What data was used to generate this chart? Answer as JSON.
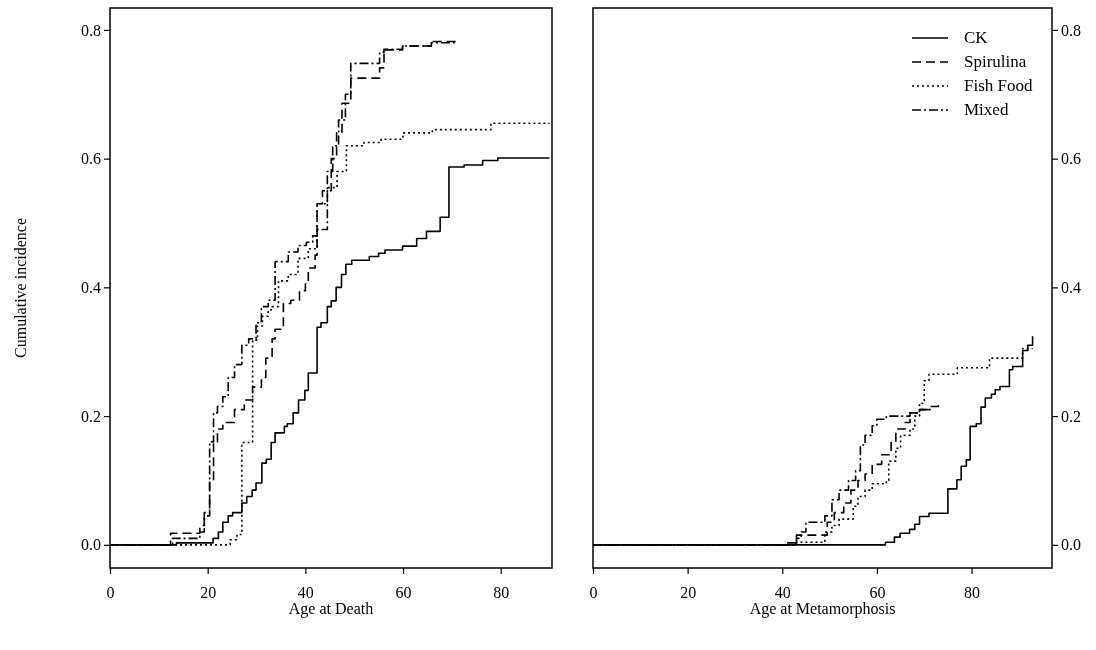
{
  "chart_data": [
    {
      "type": "step",
      "xlabel": "Age at Death",
      "ylabel": "Cumulative incidence",
      "xlim": [
        0,
        90.5
      ],
      "xticks": [
        0,
        20,
        40,
        60,
        80
      ],
      "ylim": [
        -0.036,
        0.834
      ],
      "yticks": [
        {
          "value": 0,
          "label": "0.0"
        },
        {
          "value": 0.2,
          "label": "0.2"
        },
        {
          "value": 0.4,
          "label": "0.4"
        },
        {
          "value": 0.6,
          "label": "0.6"
        },
        {
          "value": 0.8,
          "label": "0.8"
        }
      ],
      "grid": false,
      "legend": false,
      "series": [
        {
          "color": "#000000",
          "line_style": "solid",
          "x": [
            0,
            13.6,
            21.1,
            22.2,
            23.1,
            24.2,
            25.1,
            27,
            28,
            29.1,
            29.9,
            31.1,
            32,
            33,
            33.8,
            35.7,
            36.3,
            37.5,
            38.6,
            39.9,
            40.6,
            42.4,
            43.2,
            44.5,
            45.3,
            46.3,
            47.4,
            48.3,
            49.5,
            53.1,
            55,
            56.3,
            59.9,
            62.8,
            64.8,
            67.6,
            69.4,
            72.5,
            76.3,
            79.4,
            90
          ],
          "values": [
            0,
            0.003,
            0.01,
            0.02,
            0.035,
            0.045,
            0.05,
            0.065,
            0.075,
            0.085,
            0.096,
            0.127,
            0.133,
            0.159,
            0.174,
            0.184,
            0.188,
            0.205,
            0.225,
            0.24,
            0.267,
            0.338,
            0.345,
            0.37,
            0.379,
            0.4,
            0.42,
            0.436,
            0.442,
            0.448,
            0.453,
            0.458,
            0.464,
            0.476,
            0.487,
            0.509,
            0.587,
            0.59,
            0.597,
            0.601,
            0.601
          ]
        },
        {
          "color": "#000000",
          "line_style": "dashed",
          "x": [
            0,
            12.4,
            18.4,
            19.3,
            20.4,
            21.2,
            22,
            23.1,
            25.5,
            27.5,
            29.2,
            31,
            31.9,
            33.2,
            33.8,
            35.5,
            37,
            38.8,
            40,
            40.6,
            42,
            42.4,
            43.5,
            45.3,
            46.4,
            47.5,
            49.3,
            55.2,
            56.1,
            59.9,
            65.8,
            70.8
          ],
          "values": [
            0,
            0.018,
            0.03,
            0.045,
            0.1,
            0.16,
            0.18,
            0.19,
            0.21,
            0.225,
            0.245,
            0.26,
            0.29,
            0.32,
            0.335,
            0.375,
            0.38,
            0.395,
            0.405,
            0.43,
            0.45,
            0.53,
            0.55,
            0.6,
            0.64,
            0.686,
            0.725,
            0.741,
            0.769,
            0.775,
            0.782,
            0.782
          ]
        },
        {
          "color": "#000000",
          "line_style": "dotted",
          "x": [
            0,
            24.6,
            26,
            27,
            29.2,
            30.2,
            31.2,
            32.4,
            33.2,
            34.5,
            36.5,
            38.5,
            40.6,
            42.4,
            44.5,
            46.5,
            48.4,
            52,
            55.5,
            60,
            66,
            78,
            90
          ],
          "values": [
            0,
            0.008,
            0.016,
            0.159,
            0.318,
            0.34,
            0.355,
            0.365,
            0.37,
            0.41,
            0.42,
            0.445,
            0.46,
            0.53,
            0.555,
            0.58,
            0.62,
            0.625,
            0.63,
            0.64,
            0.645,
            0.655,
            0.655
          ]
        },
        {
          "color": "#000000",
          "line_style": "dashed-dotted",
          "x": [
            0,
            12.8,
            18.4,
            19.3,
            20.4,
            21.2,
            22,
            23.1,
            24.2,
            25.5,
            27,
            28.4,
            29.9,
            31,
            32.4,
            33.8,
            36.5,
            38.5,
            40.2,
            41.5,
            42.4,
            44.5,
            45.6,
            46.8,
            48.2,
            49.3,
            55.2,
            56.1,
            59.9,
            65.8,
            70.8
          ],
          "values": [
            0,
            0.01,
            0.02,
            0.05,
            0.16,
            0.205,
            0.215,
            0.23,
            0.26,
            0.28,
            0.31,
            0.32,
            0.345,
            0.37,
            0.38,
            0.44,
            0.455,
            0.465,
            0.47,
            0.48,
            0.49,
            0.58,
            0.62,
            0.66,
            0.7,
            0.748,
            0.765,
            0.77,
            0.775,
            0.78,
            0.78
          ]
        }
      ]
    },
    {
      "type": "step",
      "xlabel": "Age at Metamorphosis",
      "xlim": [
        0,
        97
      ],
      "xticks": [
        0,
        20,
        40,
        60,
        80
      ],
      "y2lim": [
        -0.036,
        0.834
      ],
      "y2ticks": [
        {
          "value": 0,
          "label": "0.0"
        },
        {
          "value": 0.2,
          "label": "0.2"
        },
        {
          "value": 0.4,
          "label": "0.4"
        },
        {
          "value": 0.6,
          "label": "0.6"
        },
        {
          "value": 0.8,
          "label": "0.8"
        }
      ],
      "grid": false,
      "legend": "top right",
      "series": [
        {
          "name": "CK",
          "color": "#000000",
          "line_style": "solid",
          "axis": "y2",
          "x": [
            0,
            61.8,
            63.7,
            64.9,
            66.9,
            68,
            69,
            71,
            75,
            76.9,
            77.8,
            78.9,
            79.7,
            81,
            82,
            82.9,
            84.2,
            85,
            86,
            88,
            88.7,
            90.8,
            91.9,
            92.9
          ],
          "values": [
            0,
            0.004,
            0.012,
            0.018,
            0.024,
            0.032,
            0.044,
            0.049,
            0.087,
            0.101,
            0.122,
            0.132,
            0.184,
            0.188,
            0.214,
            0.228,
            0.234,
            0.241,
            0.246,
            0.272,
            0.277,
            0.302,
            0.31,
            0.324
          ]
        },
        {
          "name": "Spirulina",
          "color": "#000000",
          "line_style": "dashed",
          "axis": "y2",
          "x": [
            0,
            41,
            43,
            49.5,
            51,
            53,
            54.5,
            56,
            57.5,
            59,
            61,
            63,
            64,
            66,
            67,
            69,
            71,
            73
          ],
          "values": [
            0,
            0.003,
            0.015,
            0.035,
            0.05,
            0.065,
            0.085,
            0.1,
            0.11,
            0.125,
            0.14,
            0.16,
            0.18,
            0.19,
            0.205,
            0.21,
            0.215,
            0.22
          ]
        },
        {
          "name": "Fish Food",
          "color": "#000000",
          "line_style": "dotted",
          "axis": "y2",
          "x": [
            0,
            43,
            49,
            50.5,
            52,
            55,
            56,
            57.5,
            59,
            62,
            62.5,
            64,
            65,
            67,
            68,
            69,
            70,
            71,
            77,
            83.8,
            90.8,
            92.9
          ],
          "values": [
            0,
            0.004,
            0.02,
            0.03,
            0.04,
            0.06,
            0.075,
            0.085,
            0.095,
            0.1,
            0.13,
            0.15,
            0.17,
            0.18,
            0.2,
            0.22,
            0.255,
            0.265,
            0.275,
            0.29,
            0.305,
            0.305
          ]
        },
        {
          "name": "Mixed",
          "color": "#000000",
          "line_style": "dashed-dotted",
          "axis": "y2",
          "x": [
            0,
            43,
            44,
            45,
            49,
            50.5,
            52,
            54,
            55.5,
            56.5,
            57.5,
            59,
            60,
            62,
            67,
            69,
            72
          ],
          "values": [
            0,
            0.01,
            0.02,
            0.035,
            0.045,
            0.07,
            0.085,
            0.1,
            0.115,
            0.155,
            0.17,
            0.185,
            0.195,
            0.2,
            0.205,
            0.21,
            0.21
          ]
        }
      ]
    }
  ]
}
